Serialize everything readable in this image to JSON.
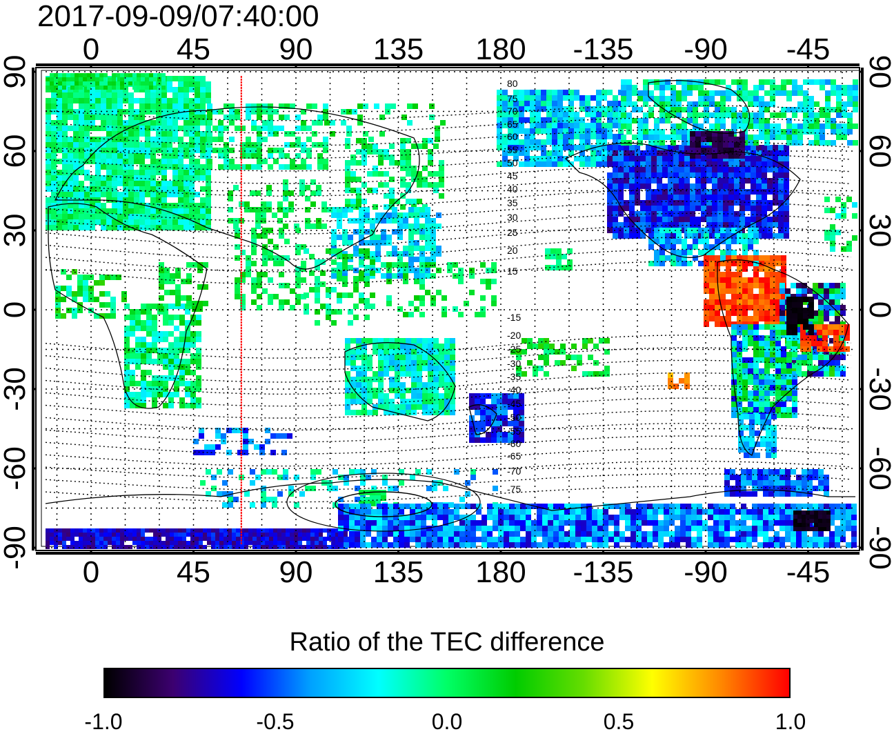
{
  "header": {
    "timestamp": "2017-09-09/07:40:00"
  },
  "map": {
    "projection": "equirectangular",
    "lon_ticks_top": [
      "0",
      "45",
      "90",
      "135",
      "180",
      "-135",
      "-90",
      "-45"
    ],
    "lon_ticks_bottom": [
      "0",
      "45",
      "90",
      "135",
      "180",
      "-135",
      "-90",
      "-45"
    ],
    "lat_ticks_left": [
      "90",
      "60",
      "30",
      "0",
      "-30",
      "-60",
      "-90"
    ],
    "lat_ticks_right": [
      "90",
      "60",
      "30",
      "0",
      "-30",
      "-60",
      "-90"
    ],
    "grid": "dotted every 15 degrees",
    "marker_line": {
      "longitude": 66,
      "color": "#ff0000"
    },
    "contour_labels": [
      "80",
      "75",
      "70",
      "65",
      "60",
      "55",
      "50",
      "45",
      "40",
      "35",
      "30",
      "25",
      "20",
      "15",
      "-15",
      "-20",
      "-25",
      "-30",
      "-35",
      "-40",
      "-45",
      "-50",
      "-55",
      "-60",
      "-65",
      "-70",
      "-75"
    ]
  },
  "colorbar": {
    "title": "Ratio of the TEC difference",
    "ticks": [
      "-1.0",
      "-0.5",
      "0.0",
      "0.5",
      "1.0"
    ],
    "range": [
      -1.0,
      1.0
    ],
    "colors": [
      "#000000",
      "#3c0070",
      "#0000ff",
      "#00a0ff",
      "#00ffff",
      "#00ff66",
      "#00cc00",
      "#66dd00",
      "#ffff00",
      "#ff8800",
      "#ff0000"
    ]
  }
}
